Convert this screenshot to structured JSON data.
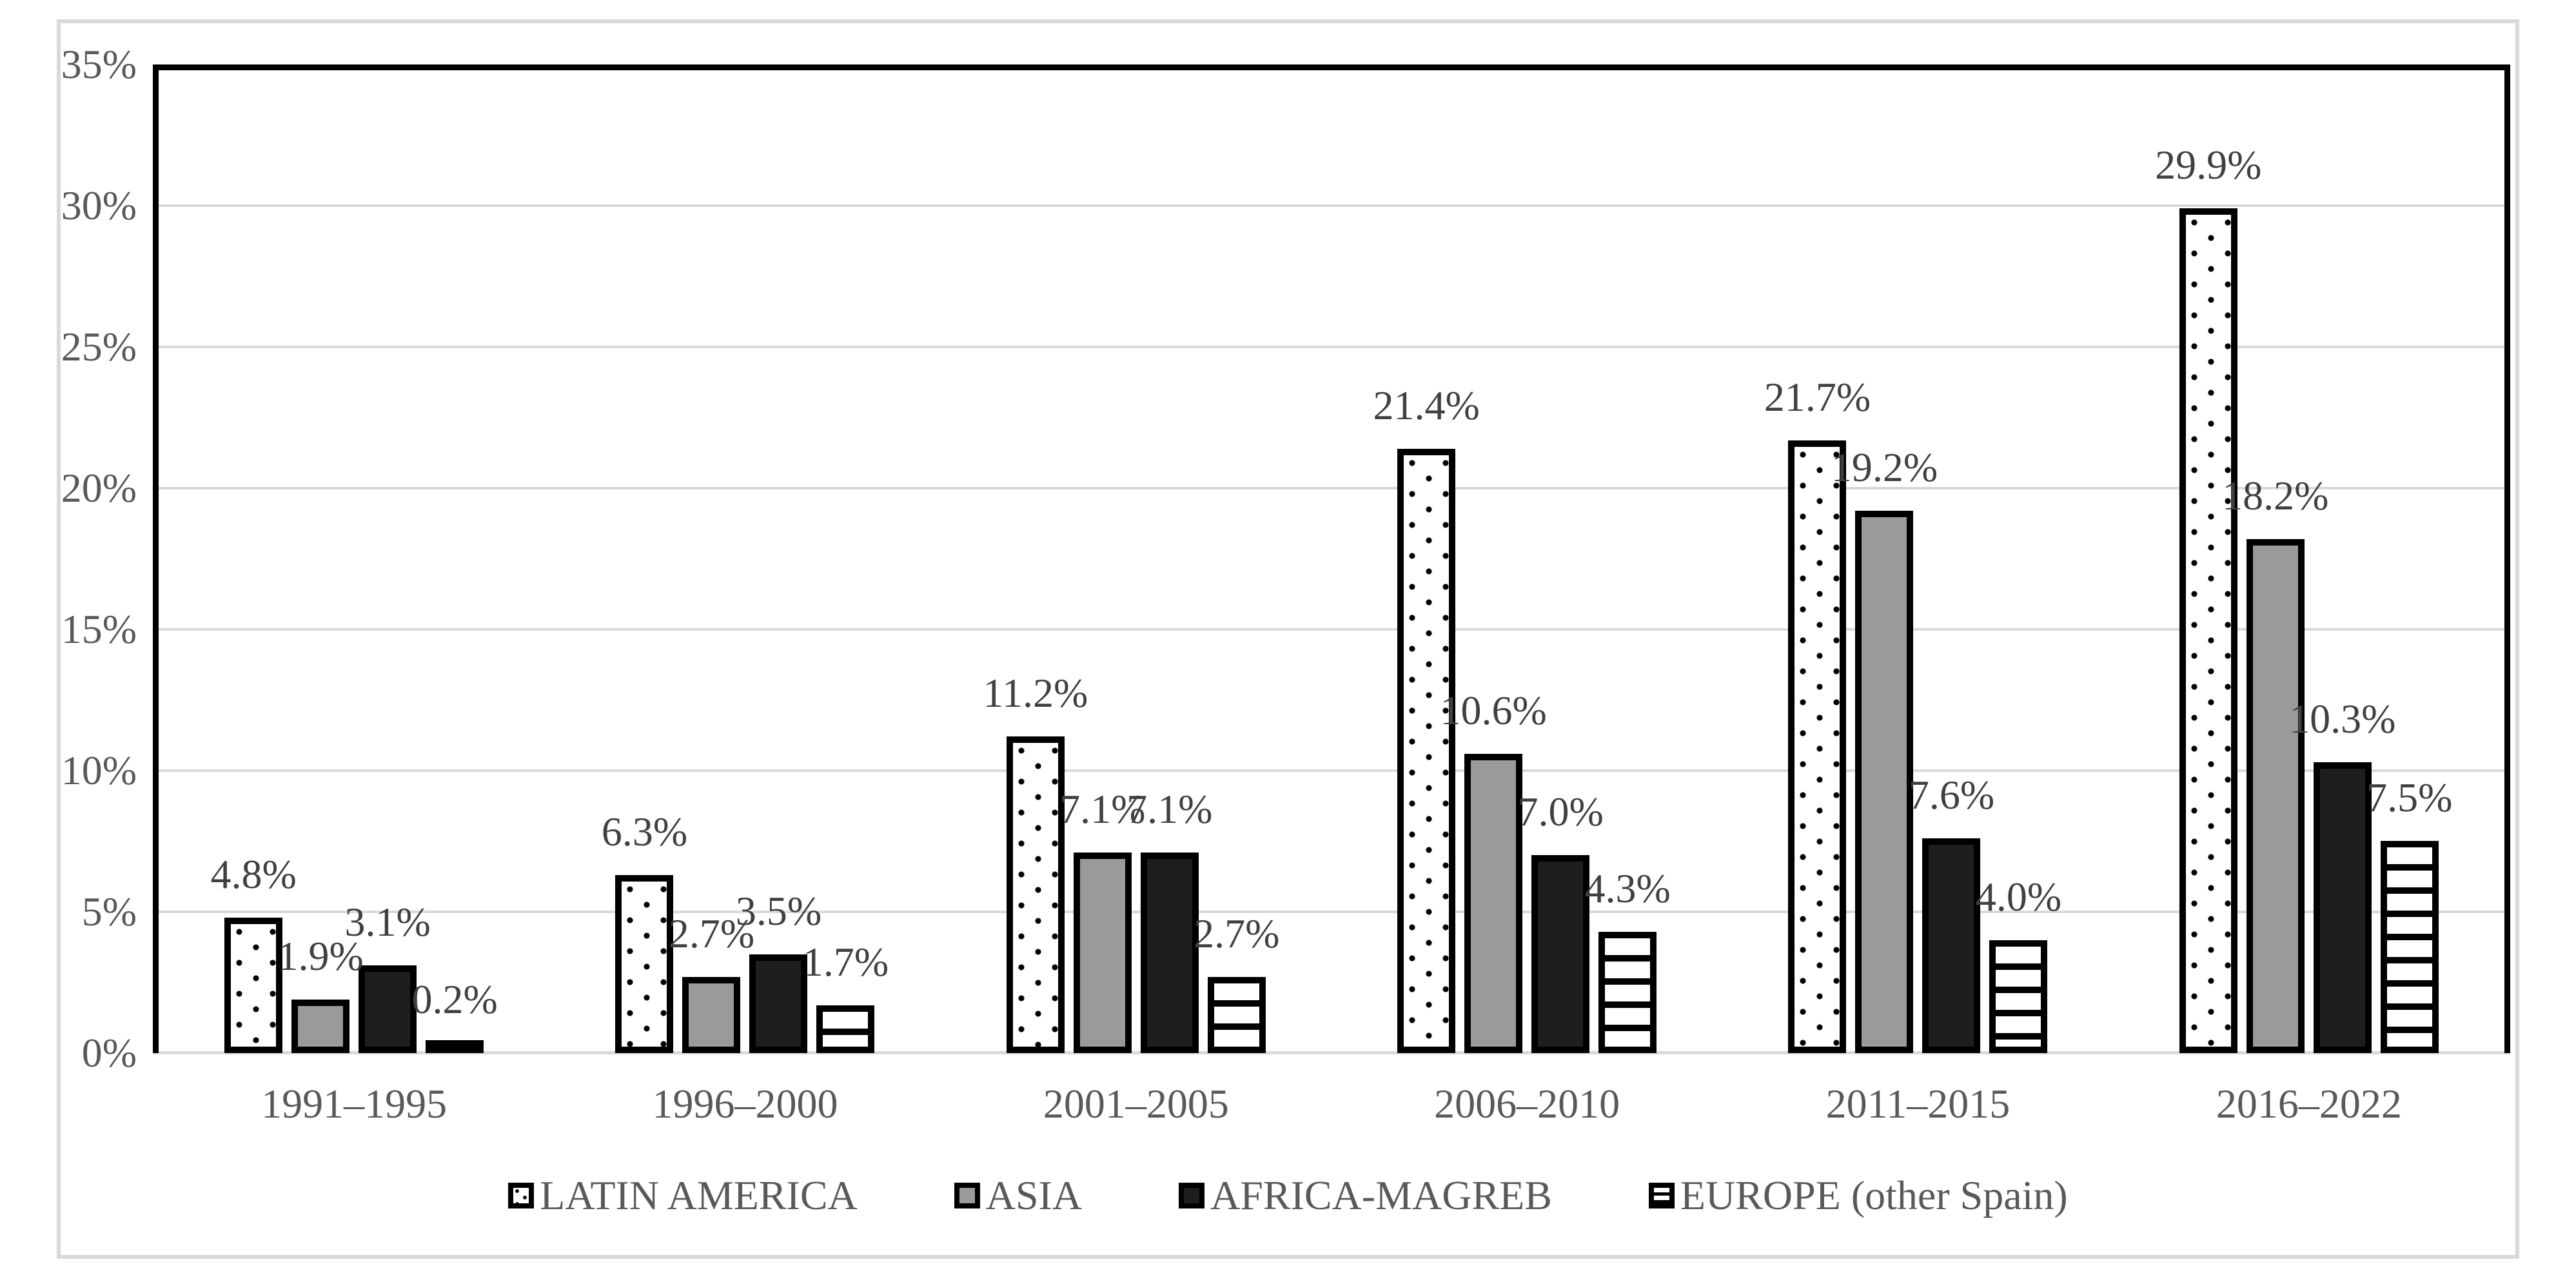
{
  "chart_data": {
    "type": "bar",
    "title": "",
    "xlabel": "",
    "ylabel": "",
    "categories": [
      "1991–1995",
      "1996–2000",
      "2001–2005",
      "2006–2010",
      "2011–2015",
      "2016–2022"
    ],
    "series": [
      {
        "name": "LATIN AMERICA",
        "pattern": "dots",
        "values": [
          4.8,
          6.3,
          11.2,
          21.4,
          21.7,
          29.9
        ],
        "labels": [
          "4.8%",
          "6.3%",
          "11.2%",
          "21.4%",
          "21.7%",
          "29.9%"
        ]
      },
      {
        "name": "ASIA",
        "pattern": "gray",
        "values": [
          1.9,
          2.7,
          7.1,
          10.6,
          19.2,
          18.2
        ],
        "labels": [
          "1.9%",
          "2.7%",
          "7.1%",
          "10.6%",
          "19.2%",
          "18.2%"
        ]
      },
      {
        "name": "AFRICA-MAGREB",
        "pattern": "black",
        "values": [
          3.1,
          3.5,
          7.1,
          7.0,
          7.6,
          10.3
        ],
        "labels": [
          "3.1%",
          "3.5%",
          "7.1%",
          "7.0%",
          "7.6%",
          "10.3%"
        ]
      },
      {
        "name": "EUROPE (other Spain)",
        "pattern": "stripes",
        "values": [
          0.2,
          1.7,
          2.7,
          4.3,
          4.0,
          7.5
        ],
        "labels": [
          "0.2%",
          "1.7%",
          "2.7%",
          "4.3%",
          "4.0%",
          "7.5%"
        ]
      }
    ],
    "y_ticks": [
      "0%",
      "5%",
      "10%",
      "15%",
      "20%",
      "25%",
      "30%",
      "35%"
    ],
    "ylim": [
      0,
      35
    ],
    "y_tick_step": 5,
    "grid": true,
    "legend_position": "bottom"
  },
  "style": {
    "bar_border": "#000000",
    "pattern_bg": "#ffffff",
    "pattern_fg": "#000000",
    "gray_fill": "#9a9a9a",
    "black_fill": "#1e1e1e",
    "gridline_color": "#d9d9d9",
    "frame_border_color": "#d9d9d9",
    "axis_label_color": "#595959",
    "data_label_color": "#404040"
  }
}
